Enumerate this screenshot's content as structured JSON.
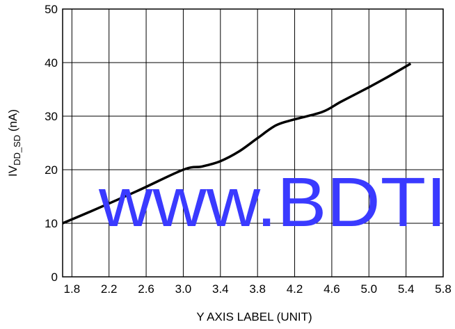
{
  "chart_data": {
    "type": "line",
    "xlabel": "Y AXIS LABEL (UNIT)",
    "ylabel": {
      "main": "IV",
      "sub": "DD_SD",
      "unit": " (nA)"
    },
    "xlim": [
      1.7,
      5.8
    ],
    "ylim": [
      0,
      50
    ],
    "x_ticks": [
      1.8,
      2.2,
      2.6,
      3.0,
      3.4,
      3.8,
      4.2,
      4.6,
      5.0,
      5.4,
      5.8
    ],
    "x_tick_labels": [
      "1.8",
      "2.2",
      "2.6",
      "3.0",
      "3.4",
      "3.8",
      "4.2",
      "4.6",
      "5.0",
      "5.4",
      "5.8"
    ],
    "y_ticks": [
      0,
      10,
      20,
      30,
      40,
      50
    ],
    "y_tick_labels": [
      "0",
      "10",
      "20",
      "30",
      "40",
      "50"
    ],
    "grid": true,
    "series": [
      {
        "x": [
          1.7,
          2.0,
          2.5,
          3.0,
          3.2,
          3.4,
          3.6,
          3.8,
          4.0,
          4.2,
          4.5,
          4.7,
          5.0,
          5.2,
          5.45
        ],
        "y": [
          10.0,
          12.2,
          16.0,
          20.0,
          20.6,
          21.6,
          23.4,
          25.9,
          28.3,
          29.4,
          30.8,
          32.7,
          35.4,
          37.3,
          39.8
        ],
        "color": "#000000"
      }
    ],
    "watermark": "www.BDTI",
    "watermark_color": "#3a3aff"
  }
}
